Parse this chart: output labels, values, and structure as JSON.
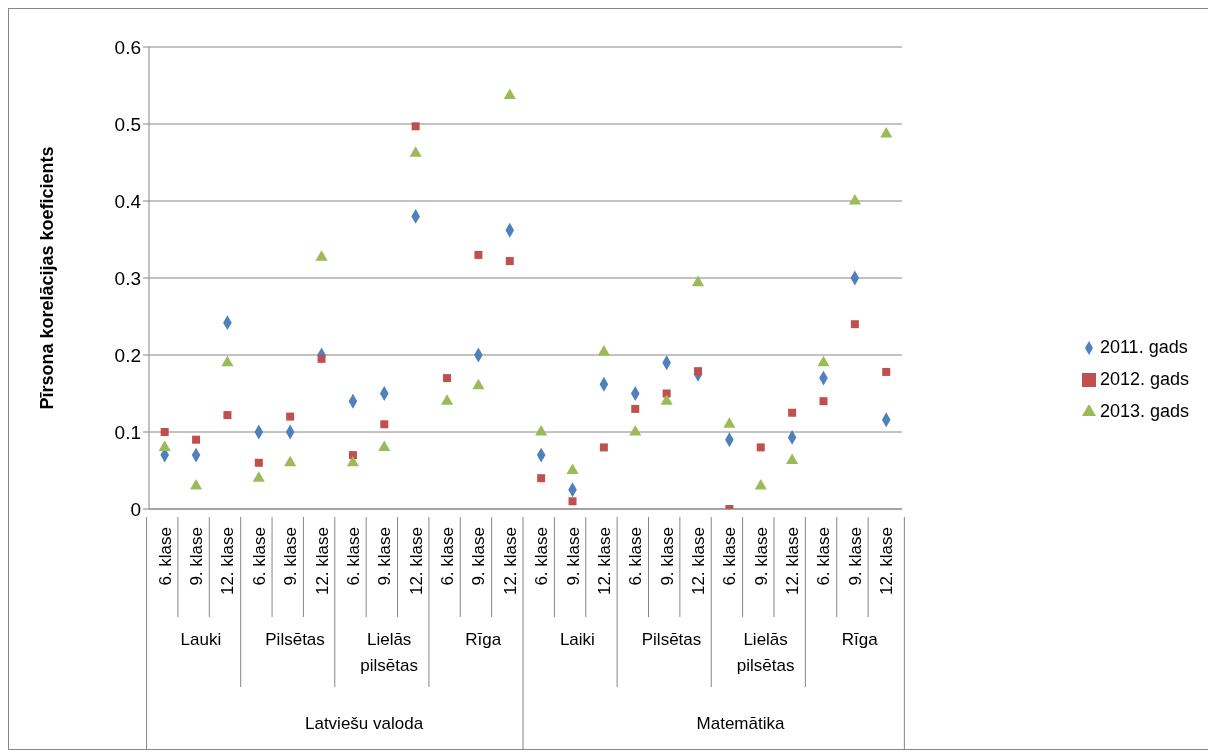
{
  "chart_data": {
    "type": "scatter",
    "ylabel": "Pīrsona korelācijas koeficients",
    "categories": [
      "6. klase",
      "9. klase",
      "12. klase",
      "6. klase",
      "9. klase",
      "12. klase",
      "6. klase",
      "9. klase",
      "12. klase",
      "6. klase",
      "9. klase",
      "12. klase",
      "6. klase",
      "9. klase",
      "12. klase",
      "6. klase",
      "9. klase",
      "12. klase",
      "6. klase",
      "9. klase",
      "12. klase",
      "6. klase",
      "9. klase",
      "12. klase"
    ],
    "series": [
      {
        "name": "2011. gads",
        "color": "#4f81bd",
        "marker": "diamond",
        "values": [
          0.07,
          0.07,
          0.242,
          0.1,
          0.1,
          0.2,
          0.14,
          0.15,
          0.38,
          null,
          0.2,
          0.362,
          0.07,
          0.025,
          0.162,
          0.15,
          0.19,
          0.175,
          0.09,
          null,
          0.093,
          0.17,
          0.3,
          0.116
        ]
      },
      {
        "name": "2012. gads",
        "color": "#c0504d",
        "marker": "square",
        "values": [
          0.1,
          0.09,
          0.122,
          0.06,
          0.12,
          0.195,
          0.07,
          0.11,
          0.497,
          0.17,
          0.33,
          0.322,
          0.04,
          0.01,
          0.08,
          0.13,
          0.15,
          0.179,
          0,
          0.08,
          0.125,
          0.14,
          0.24,
          0.178
        ]
      },
      {
        "name": "2013. gads",
        "color": "#9bbb59",
        "marker": "triangle",
        "values": [
          0.08,
          0.03,
          0.19,
          0.04,
          0.06,
          0.327,
          0.06,
          0.08,
          0.462,
          0.14,
          0.16,
          0.537,
          0.1,
          0.05,
          0.204,
          0.1,
          0.14,
          0.294,
          0.11,
          0.03,
          0.063,
          0.19,
          0.4,
          0.487
        ]
      }
    ],
    "annotations": [
      "Lauki",
      "Pilsētas",
      "Lielās pilsētas",
      "Rīga",
      "Laiki",
      "Pilsētas",
      "Lielās pilsētas",
      "Rīga",
      "Latviešu valoda",
      "Matemātika"
    ],
    "ylim": [
      0,
      0.6
    ],
    "yticks": [
      0,
      0.1,
      0.2,
      0.3,
      0.4,
      0.5,
      0.6
    ],
    "grid": "y",
    "legend": "right"
  }
}
